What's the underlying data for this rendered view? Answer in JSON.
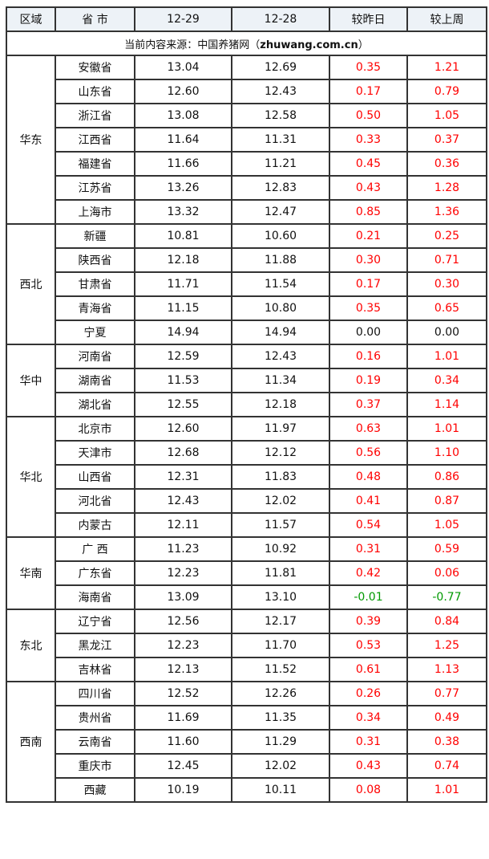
{
  "header": [
    "区域",
    "省 市",
    "12-29",
    "12-28",
    "较昨日",
    "较上周"
  ],
  "source": {
    "prefix": "当前内容来源：中国养猪网（",
    "site": "zhuwang.com.cn",
    "suffix": "）"
  },
  "colors": {
    "up": "#ff0000",
    "down": "#009900",
    "header_bg": "#edf2f7"
  },
  "regions": [
    {
      "name": "华东",
      "rows": [
        [
          "安徽省",
          "13.04",
          "12.69",
          "0.35",
          "1.21"
        ],
        [
          "山东省",
          "12.60",
          "12.43",
          "0.17",
          "0.79"
        ],
        [
          "浙江省",
          "13.08",
          "12.58",
          "0.50",
          "1.05"
        ],
        [
          "江西省",
          "11.64",
          "11.31",
          "0.33",
          "0.37"
        ],
        [
          "福建省",
          "11.66",
          "11.21",
          "0.45",
          "0.36"
        ],
        [
          "江苏省",
          "13.26",
          "12.83",
          "0.43",
          "1.28"
        ],
        [
          "上海市",
          "13.32",
          "12.47",
          "0.85",
          "1.36"
        ]
      ]
    },
    {
      "name": "西北",
      "rows": [
        [
          "新疆",
          "10.81",
          "10.60",
          "0.21",
          "0.25"
        ],
        [
          "陕西省",
          "12.18",
          "11.88",
          "0.30",
          "0.71"
        ],
        [
          "甘肃省",
          "11.71",
          "11.54",
          "0.17",
          "0.30"
        ],
        [
          "青海省",
          "11.15",
          "10.80",
          "0.35",
          "0.65"
        ],
        [
          "宁夏",
          "14.94",
          "14.94",
          "0.00",
          "0.00"
        ]
      ]
    },
    {
      "name": "华中",
      "rows": [
        [
          "河南省",
          "12.59",
          "12.43",
          "0.16",
          "1.01"
        ],
        [
          "湖南省",
          "11.53",
          "11.34",
          "0.19",
          "0.34"
        ],
        [
          "湖北省",
          "12.55",
          "12.18",
          "0.37",
          "1.14"
        ]
      ]
    },
    {
      "name": "华北",
      "rows": [
        [
          "北京市",
          "12.60",
          "11.97",
          "0.63",
          "1.01"
        ],
        [
          "天津市",
          "12.68",
          "12.12",
          "0.56",
          "1.10"
        ],
        [
          "山西省",
          "12.31",
          "11.83",
          "0.48",
          "0.86"
        ],
        [
          "河北省",
          "12.43",
          "12.02",
          "0.41",
          "0.87"
        ],
        [
          "内蒙古",
          "12.11",
          "11.57",
          "0.54",
          "1.05"
        ]
      ]
    },
    {
      "name": "华南",
      "rows": [
        [
          "广 西",
          "11.23",
          "10.92",
          "0.31",
          "0.59"
        ],
        [
          "广东省",
          "12.23",
          "11.81",
          "0.42",
          "0.06"
        ],
        [
          "海南省",
          "13.09",
          "13.10",
          "-0.01",
          "-0.77"
        ]
      ]
    },
    {
      "name": "东北",
      "rows": [
        [
          "辽宁省",
          "12.56",
          "12.17",
          "0.39",
          "0.84"
        ],
        [
          "黑龙江",
          "12.23",
          "11.70",
          "0.53",
          "1.25"
        ],
        [
          "吉林省",
          "12.13",
          "11.52",
          "0.61",
          "1.13"
        ]
      ]
    },
    {
      "name": "西南",
      "rows": [
        [
          "四川省",
          "12.52",
          "12.26",
          "0.26",
          "0.77"
        ],
        [
          "贵州省",
          "11.69",
          "11.35",
          "0.34",
          "0.49"
        ],
        [
          "云南省",
          "11.60",
          "11.29",
          "0.31",
          "0.38"
        ],
        [
          "重庆市",
          "12.45",
          "12.02",
          "0.43",
          "0.74"
        ],
        [
          "西藏",
          "10.19",
          "10.11",
          "0.08",
          "1.01"
        ]
      ]
    }
  ]
}
